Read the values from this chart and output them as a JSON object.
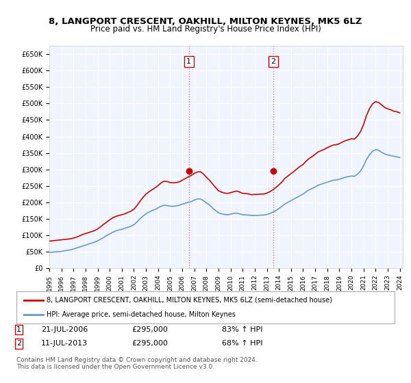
{
  "title": "8, LANGPORT CRESCENT, OAKHILL, MILTON KEYNES, MK5 6LZ",
  "subtitle": "Price paid vs. HM Land Registry's House Price Index (HPI)",
  "ylim": [
    0,
    675000
  ],
  "yticks": [
    0,
    50000,
    100000,
    150000,
    200000,
    250000,
    300000,
    350000,
    400000,
    450000,
    500000,
    550000,
    600000,
    650000
  ],
  "ytick_labels": [
    "£0",
    "£50K",
    "£100K",
    "£150K",
    "£200K",
    "£250K",
    "£300K",
    "£350K",
    "£400K",
    "£450K",
    "£500K",
    "£550K",
    "£600K",
    "£650K"
  ],
  "hpi_color": "#6699cc",
  "price_color": "#cc0000",
  "marker1_date": 2006.55,
  "marker1_price": 295000,
  "marker1_label": "1",
  "marker2_date": 2013.53,
  "marker2_price": 295000,
  "marker2_label": "2",
  "annotation1": "1     21-JUL-2006          £295,000          83% ↑ HPI",
  "annotation2": "2     11-JUL-2013          £295,000          68% ↑ HPI",
  "legend_line1": "8, LANGPORT CRESCENT, OAKHILL, MILTON KEYNES, MK5 6LZ (semi-detached house)",
  "legend_line2": "HPI: Average price, semi-detached house, Milton Keynes",
  "footnote": "Contains HM Land Registry data © Crown copyright and database right 2024.\nThis data is licensed under the Open Government Licence v3.0.",
  "background_color": "#ffffff",
  "plot_bg_color": "#f0f4ff",
  "grid_color": "#ffffff",
  "hpi_data_x": [
    1995.0,
    1995.25,
    1995.5,
    1995.75,
    1996.0,
    1996.25,
    1996.5,
    1996.75,
    1997.0,
    1997.25,
    1997.5,
    1997.75,
    1998.0,
    1998.25,
    1998.5,
    1998.75,
    1999.0,
    1999.25,
    1999.5,
    1999.75,
    2000.0,
    2000.25,
    2000.5,
    2000.75,
    2001.0,
    2001.25,
    2001.5,
    2001.75,
    2002.0,
    2002.25,
    2002.5,
    2002.75,
    2003.0,
    2003.25,
    2003.5,
    2003.75,
    2004.0,
    2004.25,
    2004.5,
    2004.75,
    2005.0,
    2005.25,
    2005.5,
    2005.75,
    2006.0,
    2006.25,
    2006.5,
    2006.75,
    2007.0,
    2007.25,
    2007.5,
    2007.75,
    2008.0,
    2008.25,
    2008.5,
    2008.75,
    2009.0,
    2009.25,
    2009.5,
    2009.75,
    2010.0,
    2010.25,
    2010.5,
    2010.75,
    2011.0,
    2011.25,
    2011.5,
    2011.75,
    2012.0,
    2012.25,
    2012.5,
    2012.75,
    2013.0,
    2013.25,
    2013.5,
    2013.75,
    2014.0,
    2014.25,
    2014.5,
    2014.75,
    2015.0,
    2015.25,
    2015.5,
    2015.75,
    2016.0,
    2016.25,
    2016.5,
    2016.75,
    2017.0,
    2017.25,
    2017.5,
    2017.75,
    2018.0,
    2018.25,
    2018.5,
    2018.75,
    2019.0,
    2019.25,
    2019.5,
    2019.75,
    2020.0,
    2020.25,
    2020.5,
    2020.75,
    2021.0,
    2021.25,
    2021.5,
    2021.75,
    2022.0,
    2022.25,
    2022.5,
    2022.75,
    2023.0,
    2023.25,
    2023.5,
    2023.75,
    2024.0
  ],
  "hpi_data_y": [
    48000,
    48500,
    49000,
    50000,
    51000,
    52500,
    54000,
    55500,
    58000,
    61000,
    64000,
    67000,
    70000,
    73000,
    76000,
    79000,
    83000,
    88000,
    93000,
    99000,
    104000,
    109000,
    113000,
    116000,
    118000,
    121000,
    124000,
    127000,
    132000,
    140000,
    150000,
    158000,
    165000,
    170000,
    175000,
    178000,
    183000,
    188000,
    191000,
    190000,
    188000,
    188000,
    189000,
    191000,
    194000,
    197000,
    200000,
    202000,
    207000,
    210000,
    210000,
    205000,
    198000,
    192000,
    183000,
    175000,
    168000,
    165000,
    163000,
    162000,
    164000,
    166000,
    167000,
    165000,
    162000,
    162000,
    161000,
    160000,
    160000,
    160000,
    161000,
    161000,
    163000,
    166000,
    170000,
    175000,
    181000,
    188000,
    195000,
    200000,
    205000,
    210000,
    215000,
    220000,
    225000,
    232000,
    238000,
    242000,
    247000,
    252000,
    255000,
    258000,
    261000,
    264000,
    267000,
    268000,
    270000,
    273000,
    276000,
    278000,
    280000,
    279000,
    285000,
    295000,
    310000,
    330000,
    345000,
    355000,
    360000,
    358000,
    352000,
    347000,
    344000,
    342000,
    340000,
    338000,
    336000
  ],
  "price_data_x": [
    1995.0,
    1995.25,
    1995.5,
    1995.75,
    1996.0,
    1996.25,
    1996.5,
    1996.75,
    1997.0,
    1997.25,
    1997.5,
    1997.75,
    1998.0,
    1998.25,
    1998.5,
    1998.75,
    1999.0,
    1999.25,
    1999.5,
    1999.75,
    2000.0,
    2000.25,
    2000.5,
    2000.75,
    2001.0,
    2001.25,
    2001.5,
    2001.75,
    2002.0,
    2002.25,
    2002.5,
    2002.75,
    2003.0,
    2003.25,
    2003.5,
    2003.75,
    2004.0,
    2004.25,
    2004.5,
    2004.75,
    2005.0,
    2005.25,
    2005.5,
    2005.75,
    2006.0,
    2006.25,
    2006.5,
    2006.75,
    2007.0,
    2007.25,
    2007.5,
    2007.75,
    2008.0,
    2008.25,
    2008.5,
    2008.75,
    2009.0,
    2009.25,
    2009.5,
    2009.75,
    2010.0,
    2010.25,
    2010.5,
    2010.75,
    2011.0,
    2011.25,
    2011.5,
    2011.75,
    2012.0,
    2012.25,
    2012.5,
    2012.75,
    2013.0,
    2013.25,
    2013.5,
    2013.75,
    2014.0,
    2014.25,
    2014.5,
    2014.75,
    2015.0,
    2015.25,
    2015.5,
    2015.75,
    2016.0,
    2016.25,
    2016.5,
    2016.75,
    2017.0,
    2017.25,
    2017.5,
    2017.75,
    2018.0,
    2018.25,
    2018.5,
    2018.75,
    2019.0,
    2019.25,
    2019.5,
    2019.75,
    2020.0,
    2020.25,
    2020.5,
    2020.75,
    2021.0,
    2021.25,
    2021.5,
    2021.75,
    2022.0,
    2022.25,
    2022.5,
    2022.75,
    2023.0,
    2023.25,
    2023.5,
    2023.75,
    2024.0
  ],
  "price_data_y": [
    82000,
    83000,
    84000,
    85000,
    86000,
    87000,
    88000,
    89000,
    91000,
    94000,
    98000,
    102000,
    105000,
    108000,
    111000,
    114000,
    119000,
    126000,
    133000,
    140000,
    147000,
    153000,
    157000,
    160000,
    162000,
    165000,
    169000,
    173000,
    179000,
    190000,
    203000,
    215000,
    225000,
    232000,
    238000,
    244000,
    251000,
    259000,
    264000,
    263000,
    260000,
    259000,
    260000,
    262000,
    267000,
    272000,
    277000,
    282000,
    288000,
    292000,
    293000,
    286000,
    276000,
    267000,
    256000,
    245000,
    235000,
    231000,
    228000,
    227000,
    229000,
    232000,
    234000,
    231000,
    227000,
    227000,
    225000,
    223000,
    224000,
    224000,
    225000,
    225000,
    228000,
    232000,
    238000,
    245000,
    253000,
    262000,
    273000,
    280000,
    287000,
    294000,
    302000,
    309000,
    315000,
    325000,
    333000,
    339000,
    346000,
    353000,
    357000,
    361000,
    366000,
    370000,
    374000,
    375000,
    378000,
    383000,
    387000,
    390000,
    393000,
    392000,
    401000,
    415000,
    436000,
    464000,
    485000,
    499000,
    506000,
    503000,
    496000,
    488000,
    484000,
    481000,
    477000,
    475000,
    472000
  ],
  "xlim": [
    1995.0,
    2024.25
  ],
  "xtick_years": [
    1995,
    1996,
    1997,
    1998,
    1999,
    2000,
    2001,
    2002,
    2003,
    2004,
    2005,
    2006,
    2007,
    2008,
    2009,
    2010,
    2011,
    2012,
    2013,
    2014,
    2015,
    2016,
    2017,
    2018,
    2019,
    2020,
    2021,
    2022,
    2023,
    2024
  ],
  "vline1_x": 2006.55,
  "vline2_x": 2013.53,
  "vline_color": "#cc0000",
  "vline_alpha": 0.5
}
